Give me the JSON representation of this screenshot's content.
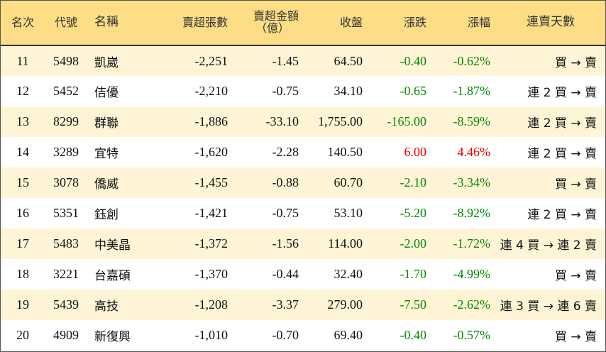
{
  "table": {
    "headers": {
      "rank": "名次",
      "code": "代號",
      "name": "名稱",
      "net_sell_lots": "賣超張數",
      "net_sell_amount_line1": "賣超金額",
      "net_sell_amount_line2": "（億）",
      "close": "收盤",
      "change": "漲跌",
      "change_pct": "漲幅",
      "streak": "連賣天數"
    },
    "rows": [
      {
        "rank": "11",
        "code": "5498",
        "name": "凱崴",
        "lots": "-2,251",
        "amount": "-1.45",
        "close": "64.50",
        "change": "-0.40",
        "pct": "-0.62%",
        "dir": "down",
        "streak": "買 → 賣"
      },
      {
        "rank": "12",
        "code": "5452",
        "name": "佶優",
        "lots": "-2,210",
        "amount": "-0.75",
        "close": "34.10",
        "change": "-0.65",
        "pct": "-1.87%",
        "dir": "down",
        "streak": "連 2 買 → 賣"
      },
      {
        "rank": "13",
        "code": "8299",
        "name": "群聯",
        "lots": "-1,886",
        "amount": "-33.10",
        "close": "1,755.00",
        "change": "-165.00",
        "pct": "-8.59%",
        "dir": "down",
        "streak": "連 2 買 → 賣"
      },
      {
        "rank": "14",
        "code": "3289",
        "name": "宜特",
        "lots": "-1,620",
        "amount": "-2.28",
        "close": "140.50",
        "change": "6.00",
        "pct": "4.46%",
        "dir": "up",
        "streak": "連 2 買 → 賣"
      },
      {
        "rank": "15",
        "code": "3078",
        "name": "僑威",
        "lots": "-1,455",
        "amount": "-0.88",
        "close": "60.70",
        "change": "-2.10",
        "pct": "-3.34%",
        "dir": "down",
        "streak": "買 → 賣"
      },
      {
        "rank": "16",
        "code": "5351",
        "name": "鈺創",
        "lots": "-1,421",
        "amount": "-0.75",
        "close": "53.10",
        "change": "-5.20",
        "pct": "-8.92%",
        "dir": "down",
        "streak": "連 2 買 → 賣"
      },
      {
        "rank": "17",
        "code": "5483",
        "name": "中美晶",
        "lots": "-1,372",
        "amount": "-1.56",
        "close": "114.00",
        "change": "-2.00",
        "pct": "-1.72%",
        "dir": "down",
        "streak": "連 4 買 → 連 2 賣"
      },
      {
        "rank": "18",
        "code": "3221",
        "name": "台嘉碩",
        "lots": "-1,370",
        "amount": "-0.44",
        "close": "32.40",
        "change": "-1.70",
        "pct": "-4.99%",
        "dir": "down",
        "streak": "買 → 賣"
      },
      {
        "rank": "19",
        "code": "5439",
        "name": "高技",
        "lots": "-1,208",
        "amount": "-3.37",
        "close": "279.00",
        "change": "-7.50",
        "pct": "-2.62%",
        "dir": "down",
        "streak": "連 3 買 → 連 6 賣"
      },
      {
        "rank": "20",
        "code": "4909",
        "name": "新復興",
        "lots": "-1,010",
        "amount": "-0.70",
        "close": "69.40",
        "change": "-0.40",
        "pct": "-0.57%",
        "dir": "down",
        "streak": "買 → 賣"
      }
    ]
  },
  "colors": {
    "header_bg": "#fddd86",
    "row_alt_bg": "#fff4d6",
    "down": "#008a00",
    "up": "#e00000"
  }
}
